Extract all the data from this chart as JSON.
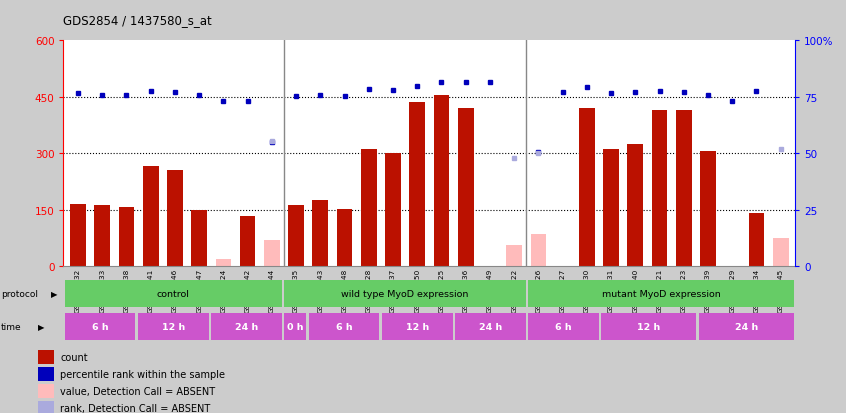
{
  "title": "GDS2854 / 1437580_s_at",
  "samples": [
    "GSM148432",
    "GSM148433",
    "GSM148438",
    "GSM148441",
    "GSM148446",
    "GSM148447",
    "GSM148424",
    "GSM148442",
    "GSM148444",
    "GSM148435",
    "GSM148443",
    "GSM148448",
    "GSM148428",
    "GSM148437",
    "GSM148450",
    "GSM148425",
    "GSM148436",
    "GSM148449",
    "GSM148422",
    "GSM148426",
    "GSM148427",
    "GSM148430",
    "GSM148431",
    "GSM148440",
    "GSM148421",
    "GSM148423",
    "GSM148439",
    "GSM148429",
    "GSM148434",
    "GSM148445"
  ],
  "counts": [
    165,
    162,
    158,
    265,
    255,
    148,
    0,
    132,
    0,
    162,
    175,
    152,
    310,
    300,
    435,
    455,
    420,
    0,
    0,
    0,
    0,
    420,
    310,
    325,
    415,
    415,
    305,
    0,
    140,
    0
  ],
  "absent_counts": [
    0,
    0,
    0,
    0,
    0,
    0,
    18,
    0,
    70,
    0,
    0,
    0,
    0,
    0,
    0,
    0,
    0,
    0,
    55,
    85,
    0,
    0,
    0,
    0,
    0,
    0,
    0,
    0,
    0,
    75
  ],
  "ranks": [
    460,
    455,
    455,
    465,
    463,
    455,
    440,
    440,
    330,
    452,
    456,
    452,
    472,
    468,
    478,
    490,
    490,
    490,
    0,
    302,
    462,
    476,
    461,
    463,
    465,
    463,
    456,
    440,
    465,
    0
  ],
  "absent_ranks": [
    0,
    0,
    0,
    0,
    0,
    0,
    0,
    0,
    332,
    0,
    0,
    0,
    0,
    0,
    0,
    0,
    0,
    0,
    286,
    300,
    0,
    0,
    0,
    0,
    0,
    0,
    0,
    0,
    0,
    310
  ],
  "ylim_left": [
    0,
    600
  ],
  "ylim_right": [
    0,
    100
  ],
  "yticks_left": [
    0,
    150,
    300,
    450,
    600
  ],
  "yticks_right": [
    0,
    25,
    50,
    75,
    100
  ],
  "bar_color": "#bb1100",
  "absent_bar_color": "#ffbbbb",
  "rank_color": "#0000bb",
  "absent_rank_color": "#aaaadd",
  "plot_bg": "#ffffff",
  "protocol_groups": [
    {
      "label": "control",
      "start": 0,
      "end": 9,
      "color": "#66cc66"
    },
    {
      "label": "wild type MyoD expression",
      "start": 9,
      "end": 19,
      "color": "#66cc66"
    },
    {
      "label": "mutant MyoD expression",
      "start": 19,
      "end": 30,
      "color": "#66cc66"
    }
  ],
  "time_groups": [
    {
      "label": "6 h",
      "start": 0,
      "end": 3
    },
    {
      "label": "12 h",
      "start": 3,
      "end": 6
    },
    {
      "label": "24 h",
      "start": 6,
      "end": 9
    },
    {
      "label": "0 h",
      "start": 9,
      "end": 10
    },
    {
      "label": "6 h",
      "start": 10,
      "end": 13
    },
    {
      "label": "12 h",
      "start": 13,
      "end": 16
    },
    {
      "label": "24 h",
      "start": 16,
      "end": 19
    },
    {
      "label": "6 h",
      "start": 19,
      "end": 22
    },
    {
      "label": "12 h",
      "start": 22,
      "end": 26
    },
    {
      "label": "24 h",
      "start": 26,
      "end": 30
    }
  ],
  "legend_items": [
    {
      "color": "#bb1100",
      "label": "count"
    },
    {
      "color": "#0000bb",
      "label": "percentile rank within the sample"
    },
    {
      "color": "#ffbbbb",
      "label": "value, Detection Call = ABSENT"
    },
    {
      "color": "#aaaadd",
      "label": "rank, Detection Call = ABSENT"
    }
  ]
}
